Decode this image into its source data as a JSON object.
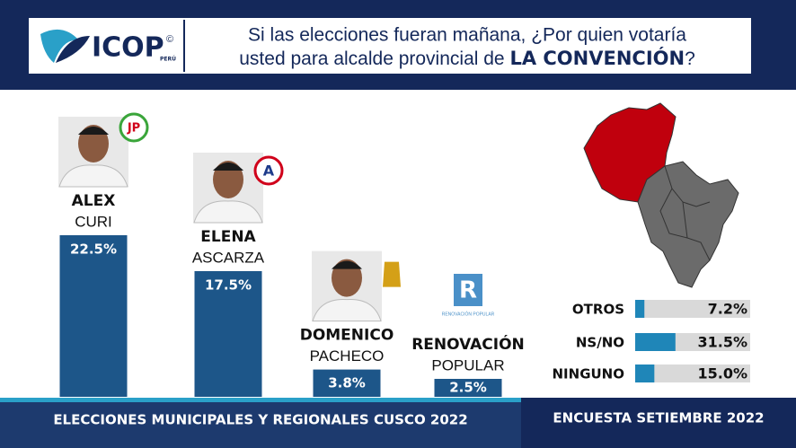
{
  "header": {
    "logo": "ICOP",
    "logo_sub": "PERÚ",
    "logo_mark": "©",
    "question_line1": "Si las elecciones fueran mañana, ¿Por quien votaría",
    "question_line2": "usted para alcalde provincial de ",
    "question_bold": "LA CONVENCIÓN",
    "question_end": "?"
  },
  "chart_data": [
    {
      "type": "bar",
      "categories": [
        "ALEX",
        "ELENA",
        "DOMENICO",
        "RENOVACIÓN"
      ],
      "subcategories": [
        "CURI",
        "ASCARZA",
        "PACHECO",
        "POPULAR"
      ],
      "values": [
        22.5,
        17.5,
        3.8,
        2.5
      ],
      "value_labels": [
        "22.5%",
        "17.5%",
        "3.8%",
        "2.5%"
      ],
      "color": "#1d5689",
      "ylim": [
        0,
        25
      ]
    },
    {
      "type": "hbar",
      "categories": [
        "OTROS",
        "NS/NO",
        "NINGUNO"
      ],
      "values": [
        7.2,
        31.5,
        15.0
      ],
      "value_labels": [
        "7.2%",
        "31.5%",
        "15.0%"
      ],
      "color": "#1f86b8",
      "track_color": "#d9d9d9",
      "xlim": [
        0,
        90
      ]
    }
  ],
  "party_logos": {
    "jp": "JP",
    "a": "A",
    "r": "R",
    "r_caption": "RENOVACIÓN POPULAR"
  },
  "footer": {
    "left": "ELECCIONES MUNICIPALES Y REGIONALES CUSCO 2022",
    "right": "ENCUESTA SETIEMBRE 2022"
  }
}
